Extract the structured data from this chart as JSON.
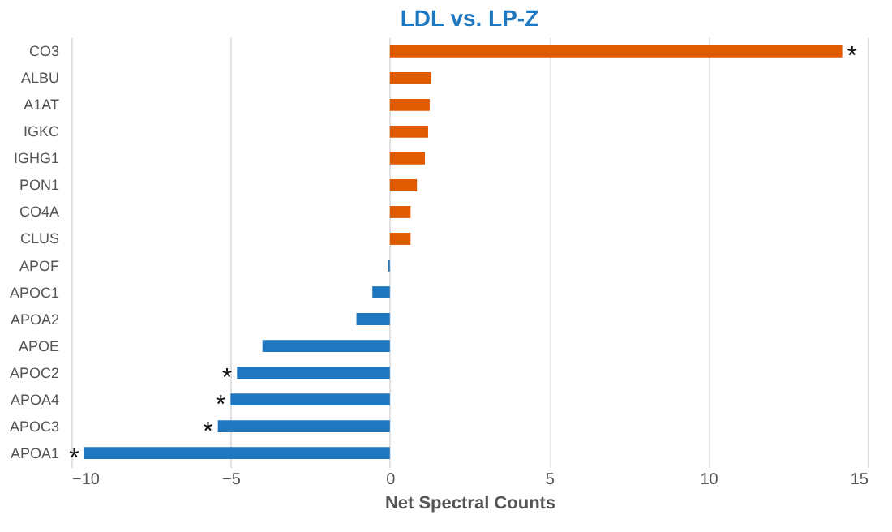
{
  "chart_data": {
    "type": "bar",
    "orientation": "horizontal",
    "title": "LDL vs. LP-Z",
    "xlabel": "Net Spectral Counts",
    "categories": [
      "CO3",
      "ALBU",
      "A1AT",
      "IGKC",
      "IGHG1",
      "PON1",
      "CO4A",
      "CLUS",
      "APOF",
      "APOC1",
      "APOA2",
      "APOE",
      "APOC2",
      "APOA4",
      "APOC3",
      "APOA1"
    ],
    "values": [
      14.2,
      1.3,
      1.25,
      1.2,
      1.1,
      0.85,
      0.65,
      0.65,
      -0.05,
      -0.55,
      -1.05,
      -4.0,
      -4.8,
      -5.0,
      -5.4,
      -9.6
    ],
    "colors": [
      "#e05a00",
      "#e05a00",
      "#e05a00",
      "#e05a00",
      "#e05a00",
      "#e05a00",
      "#e05a00",
      "#e05a00",
      "#1f77c0",
      "#1f77c0",
      "#1f77c0",
      "#1f77c0",
      "#1f77c0",
      "#1f77c0",
      "#1f77c0",
      "#1f77c0"
    ],
    "xlim": [
      -10,
      15
    ],
    "xticks": [
      -10,
      -5,
      0,
      5,
      10,
      15
    ],
    "grid": "x",
    "annotations": [
      {
        "text": "*",
        "x": 14.2,
        "y": "CO3"
      },
      {
        "text": "*",
        "x": -4.8,
        "y": "APOC2"
      },
      {
        "text": "*",
        "x": -5.0,
        "y": "APOA4"
      },
      {
        "text": "*",
        "x": -5.4,
        "y": "APOC3"
      },
      {
        "text": "*",
        "x": -9.6,
        "y": "APOA1"
      }
    ]
  }
}
